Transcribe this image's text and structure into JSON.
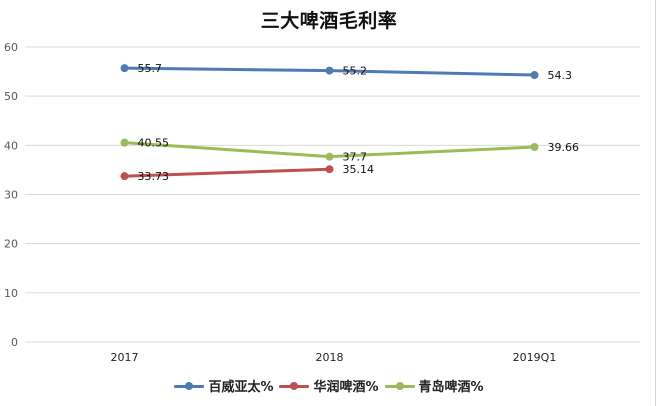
{
  "chart_data": {
    "type": "line",
    "title": "三大啤酒毛利率",
    "xlabel": "",
    "ylabel": "",
    "categories": [
      "2017",
      "2018",
      "2019Q1"
    ],
    "series": [
      {
        "name": "百威亚太%",
        "color": "#4f7bb3",
        "values": [
          55.7,
          55.2,
          54.3
        ],
        "labels": [
          "55.7",
          "55.2",
          "54.3"
        ]
      },
      {
        "name": "华润啤酒%",
        "color": "#c0504d",
        "values": [
          33.73,
          35.14,
          null
        ],
        "labels": [
          "33.73",
          "35.14",
          ""
        ]
      },
      {
        "name": "青岛啤酒%",
        "color": "#9bbb59",
        "values": [
          40.55,
          37.7,
          39.66
        ],
        "labels": [
          "40.55",
          "37.7",
          "39.66"
        ]
      }
    ],
    "ylim": [
      0,
      60
    ],
    "yticks": [
      0,
      10,
      20,
      30,
      40,
      50,
      60
    ],
    "grid": true,
    "legend_position": "bottom"
  }
}
